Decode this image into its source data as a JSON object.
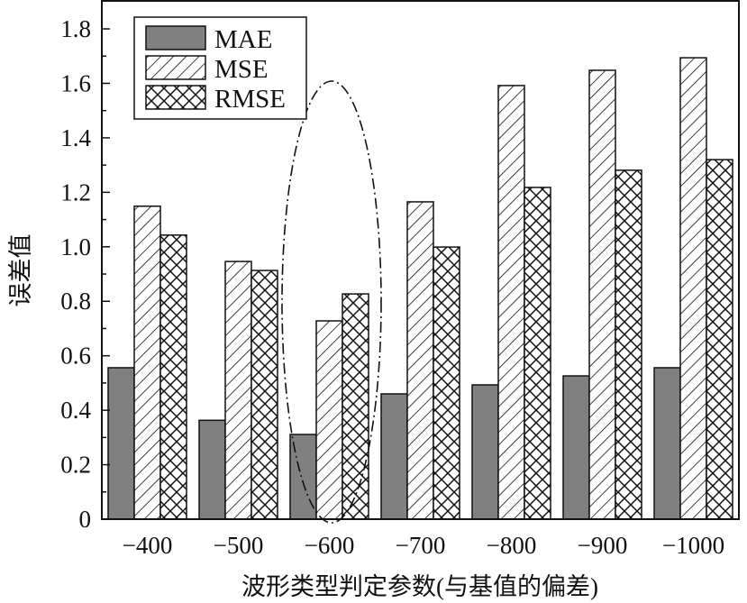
{
  "chart_data": {
    "type": "bar",
    "title": "",
    "xlabel": "波形类型判定参数(与基值的偏差)",
    "ylabel": "误差值",
    "categories": [
      "-400",
      "-500",
      "-600",
      "-700",
      "-800",
      "-900",
      "-1000"
    ],
    "series": [
      {
        "name": "MAE",
        "values": [
          0.556,
          0.363,
          0.311,
          0.46,
          0.493,
          0.526,
          0.556
        ],
        "fill": "#808080",
        "pattern": "solid"
      },
      {
        "name": "MSE",
        "values": [
          1.149,
          0.946,
          0.728,
          1.165,
          1.592,
          1.648,
          1.694
        ],
        "fill": "#ffffff",
        "pattern": "diagonal"
      },
      {
        "name": "RMSE",
        "values": [
          1.043,
          0.913,
          0.827,
          0.999,
          1.218,
          1.281,
          1.32
        ],
        "fill": "#ffffff",
        "pattern": "crosshatch"
      }
    ],
    "yticks": [
      "0",
      "0.2",
      "0.4",
      "0.6",
      "0.8",
      "1.0",
      "1.2",
      "1.4",
      "1.6",
      "1.8"
    ],
    "ylim": [
      0,
      1.9
    ],
    "grid": false,
    "legend": "top-left",
    "annotation": "dash-dot ellipse highlighting -600 group"
  }
}
